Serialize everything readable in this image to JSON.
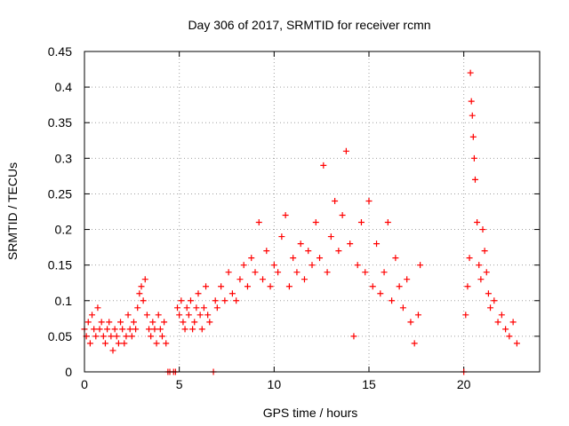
{
  "chart_data": {
    "type": "scatter",
    "title": "Day 306 of 2017, SRMTID for receiver rcmn",
    "xlabel": "GPS time / hours",
    "ylabel": "SRMTID / TECUs",
    "xlim": [
      0,
      24
    ],
    "ylim": [
      0,
      0.45
    ],
    "x_ticks": [
      "0",
      "5",
      "10",
      "15",
      "20"
    ],
    "y_ticks": [
      "0",
      "0.05",
      "0.1",
      "0.15",
      "0.2",
      "0.25",
      "0.3",
      "0.35",
      "0.4",
      "0.45"
    ],
    "grid": true,
    "marker": "+",
    "series": [
      {
        "name": "SRMTID",
        "color": "#ff0000",
        "points": [
          [
            0.0,
            0.06
          ],
          [
            0.1,
            0.05
          ],
          [
            0.2,
            0.07
          ],
          [
            0.3,
            0.04
          ],
          [
            0.4,
            0.08
          ],
          [
            0.5,
            0.06
          ],
          [
            0.6,
            0.05
          ],
          [
            0.7,
            0.09
          ],
          [
            0.8,
            0.06
          ],
          [
            0.9,
            0.07
          ],
          [
            1.0,
            0.05
          ],
          [
            1.1,
            0.04
          ],
          [
            1.2,
            0.06
          ],
          [
            1.3,
            0.07
          ],
          [
            1.4,
            0.05
          ],
          [
            1.5,
            0.03
          ],
          [
            1.6,
            0.06
          ],
          [
            1.7,
            0.05
          ],
          [
            1.8,
            0.04
          ],
          [
            1.9,
            0.07
          ],
          [
            2.0,
            0.06
          ],
          [
            2.1,
            0.04
          ],
          [
            2.2,
            0.05
          ],
          [
            2.3,
            0.08
          ],
          [
            2.4,
            0.06
          ],
          [
            2.5,
            0.05
          ],
          [
            2.6,
            0.07
          ],
          [
            2.7,
            0.06
          ],
          [
            2.8,
            0.09
          ],
          [
            2.9,
            0.11
          ],
          [
            3.0,
            0.12
          ],
          [
            3.1,
            0.1
          ],
          [
            3.2,
            0.13
          ],
          [
            3.3,
            0.08
          ],
          [
            3.4,
            0.06
          ],
          [
            3.5,
            0.05
          ],
          [
            3.6,
            0.07
          ],
          [
            3.7,
            0.06
          ],
          [
            3.8,
            0.04
          ],
          [
            3.9,
            0.08
          ],
          [
            4.0,
            0.06
          ],
          [
            4.1,
            0.05
          ],
          [
            4.2,
            0.07
          ],
          [
            4.3,
            0.04
          ],
          [
            4.4,
            0.0
          ],
          [
            4.5,
            0.0
          ],
          [
            4.7,
            0.0
          ],
          [
            4.8,
            0.0
          ],
          [
            4.9,
            0.09
          ],
          [
            5.0,
            0.08
          ],
          [
            5.1,
            0.1
          ],
          [
            5.2,
            0.07
          ],
          [
            5.3,
            0.06
          ],
          [
            5.4,
            0.09
          ],
          [
            5.5,
            0.08
          ],
          [
            5.6,
            0.1
          ],
          [
            5.7,
            0.06
          ],
          [
            5.8,
            0.07
          ],
          [
            5.9,
            0.09
          ],
          [
            6.0,
            0.11
          ],
          [
            6.1,
            0.08
          ],
          [
            6.2,
            0.06
          ],
          [
            6.3,
            0.09
          ],
          [
            6.4,
            0.12
          ],
          [
            6.5,
            0.08
          ],
          [
            6.6,
            0.07
          ],
          [
            6.8,
            0.0
          ],
          [
            6.9,
            0.1
          ],
          [
            7.0,
            0.09
          ],
          [
            7.2,
            0.12
          ],
          [
            7.4,
            0.1
          ],
          [
            7.6,
            0.14
          ],
          [
            7.8,
            0.11
          ],
          [
            8.0,
            0.1
          ],
          [
            8.2,
            0.13
          ],
          [
            8.4,
            0.15
          ],
          [
            8.6,
            0.12
          ],
          [
            8.8,
            0.16
          ],
          [
            9.0,
            0.14
          ],
          [
            9.2,
            0.21
          ],
          [
            9.4,
            0.13
          ],
          [
            9.6,
            0.17
          ],
          [
            9.8,
            0.12
          ],
          [
            10.0,
            0.15
          ],
          [
            10.2,
            0.14
          ],
          [
            10.4,
            0.19
          ],
          [
            10.6,
            0.22
          ],
          [
            10.8,
            0.12
          ],
          [
            11.0,
            0.16
          ],
          [
            11.2,
            0.14
          ],
          [
            11.4,
            0.18
          ],
          [
            11.6,
            0.13
          ],
          [
            11.8,
            0.17
          ],
          [
            12.0,
            0.15
          ],
          [
            12.2,
            0.21
          ],
          [
            12.4,
            0.16
          ],
          [
            12.6,
            0.29
          ],
          [
            12.8,
            0.14
          ],
          [
            13.0,
            0.19
          ],
          [
            13.2,
            0.24
          ],
          [
            13.4,
            0.17
          ],
          [
            13.6,
            0.22
          ],
          [
            13.8,
            0.31
          ],
          [
            14.0,
            0.18
          ],
          [
            14.2,
            0.05
          ],
          [
            14.4,
            0.15
          ],
          [
            14.6,
            0.21
          ],
          [
            14.8,
            0.14
          ],
          [
            15.0,
            0.24
          ],
          [
            15.2,
            0.12
          ],
          [
            15.4,
            0.18
          ],
          [
            15.6,
            0.11
          ],
          [
            15.8,
            0.14
          ],
          [
            16.0,
            0.21
          ],
          [
            16.2,
            0.1
          ],
          [
            16.4,
            0.16
          ],
          [
            16.6,
            0.12
          ],
          [
            16.8,
            0.09
          ],
          [
            17.0,
            0.13
          ],
          [
            17.2,
            0.07
          ],
          [
            17.4,
            0.04
          ],
          [
            17.6,
            0.08
          ],
          [
            17.7,
            0.15
          ],
          [
            20.0,
            0.0
          ],
          [
            20.1,
            0.08
          ],
          [
            20.2,
            0.12
          ],
          [
            20.3,
            0.16
          ],
          [
            20.35,
            0.42
          ],
          [
            20.4,
            0.38
          ],
          [
            20.45,
            0.36
          ],
          [
            20.5,
            0.33
          ],
          [
            20.55,
            0.3
          ],
          [
            20.6,
            0.27
          ],
          [
            20.7,
            0.21
          ],
          [
            20.8,
            0.15
          ],
          [
            20.9,
            0.13
          ],
          [
            21.0,
            0.2
          ],
          [
            21.1,
            0.17
          ],
          [
            21.2,
            0.14
          ],
          [
            21.3,
            0.11
          ],
          [
            21.4,
            0.09
          ],
          [
            21.6,
            0.1
          ],
          [
            21.8,
            0.07
          ],
          [
            22.0,
            0.08
          ],
          [
            22.2,
            0.06
          ],
          [
            22.4,
            0.05
          ],
          [
            22.6,
            0.07
          ],
          [
            22.8,
            0.04
          ]
        ]
      }
    ]
  }
}
